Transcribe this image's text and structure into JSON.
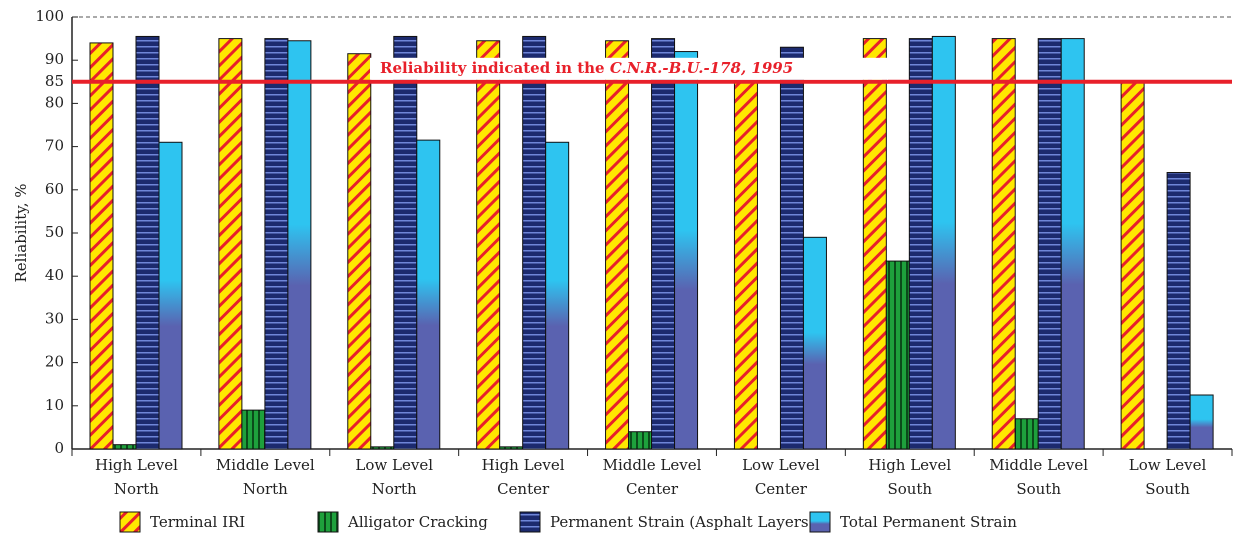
{
  "chart_data": {
    "type": "bar",
    "y_label": "Reliability, %",
    "categories": [
      [
        "High  Level",
        "North"
      ],
      [
        "Middle Level",
        "North"
      ],
      [
        "Low  Level",
        "North"
      ],
      [
        "High Level",
        "Center"
      ],
      [
        "Middle  Level",
        "Center"
      ],
      [
        "Low  Level",
        "Center"
      ],
      [
        "High  Level",
        "South"
      ],
      [
        "Middle  Level",
        "South"
      ],
      [
        "Low  Level",
        "South"
      ]
    ],
    "series": [
      {
        "name": "Terminal IRI",
        "color": "#ffe800",
        "values": [
          94,
          95,
          91.5,
          94.5,
          94.5,
          85,
          95,
          95,
          85
        ]
      },
      {
        "name": "Alligator Cracking",
        "color": "#1ea03c",
        "values": [
          1,
          9,
          0.5,
          0.5,
          4,
          0,
          43.5,
          7,
          0
        ]
      },
      {
        "name": "Permanent Strain (Asphalt Layers)",
        "color": "#1c2a6e",
        "values": [
          95.5,
          95,
          95.5,
          95.5,
          95,
          93,
          95,
          95,
          64
        ]
      },
      {
        "name": "Total Permanent  Strain",
        "color": "#2ec4f0",
        "values": [
          71,
          94.5,
          71.5,
          71,
          92,
          49,
          95.5,
          95,
          12.5
        ]
      }
    ],
    "reference": {
      "value": 85,
      "label": "Reliability indicated in the ",
      "label_italic": "C.N.R.-B.U.-178, 1995",
      "color": "#e8202a"
    },
    "ylim": [
      0,
      100
    ],
    "yticks": [
      0,
      10,
      20,
      30,
      40,
      50,
      60,
      70,
      80,
      85,
      90,
      100
    ],
    "grid": false
  }
}
